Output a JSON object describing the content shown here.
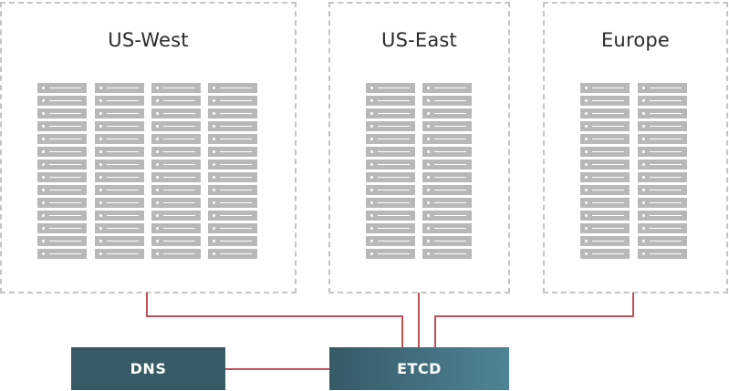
{
  "regions": [
    {
      "title": "US-West",
      "server_racks": 4,
      "servers_per_rack": 14
    },
    {
      "title": "US-East",
      "server_racks": 2,
      "servers_per_rack": 14
    },
    {
      "title": "Europe",
      "server_racks": 2,
      "servers_per_rack": 14
    }
  ],
  "nodes": {
    "dns": "DNS",
    "etcd": "ETCD"
  },
  "colors": {
    "region_border": "#c4c4c4",
    "server": "#b8b8b8",
    "link": "#c0505a",
    "dns_fill": "#365a66",
    "etcd_fill_start": "#365a66",
    "etcd_fill_end": "#4e8497"
  },
  "icons": {
    "server": "server-unit-icon"
  }
}
